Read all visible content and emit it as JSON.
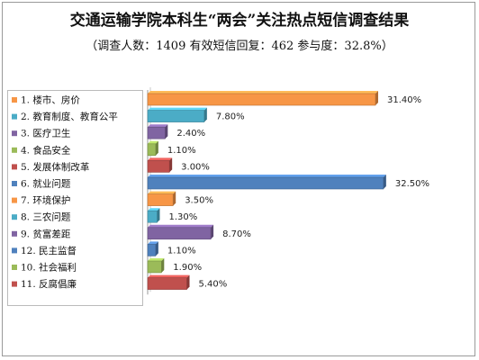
{
  "title": "交通运输学院本科生“两会”关注热点短信调查结果",
  "subtitle": "（调查人数：1409  有效短信回复：462  参与度：32.8%）",
  "chart_data": {
    "type": "bar",
    "orientation": "horizontal",
    "title": "交通运输学院本科生“两会”关注热点短信调查结果",
    "subtitle": "（调查人数：1409  有效短信回复：462  参与度：32.8%）",
    "legend_position": "left",
    "grid": false,
    "xlim": [
      0,
      35
    ],
    "categories": [
      "1. 楼市、房价",
      "2. 教育制度、教育公平",
      "3. 医疗卫生",
      "4. 食品安全",
      "5. 发展体制改革",
      "6. 就业问题",
      "7. 环境保护",
      "8. 三农问题",
      "9. 贫富差距",
      "12. 民主监督",
      "10. 社会福利",
      "11. 反腐倡廉"
    ],
    "values": [
      31.4,
      7.8,
      2.4,
      1.1,
      3.0,
      32.5,
      3.5,
      1.3,
      8.7,
      1.1,
      1.9,
      5.4
    ],
    "value_labels": [
      "31.40%",
      "7.80%",
      "2.40%",
      "1.10%",
      "3.00%",
      "32.50%",
      "3.50%",
      "1.30%",
      "8.70%",
      "1.10%",
      "1.90%",
      "5.40%"
    ],
    "colors": [
      "#F79646",
      "#4BACC6",
      "#8064A2",
      "#9BBB59",
      "#C0504D",
      "#4F81BD",
      "#F79646",
      "#4BACC6",
      "#8064A2",
      "#4F81BD",
      "#9BBB59",
      "#C0504D"
    ]
  }
}
